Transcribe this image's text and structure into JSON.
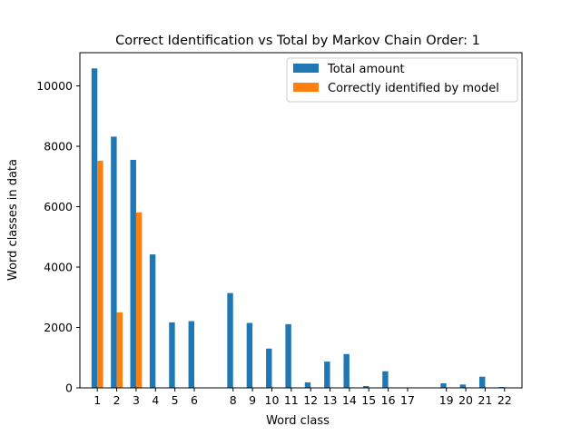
{
  "chart_data": {
    "type": "bar",
    "title": "Correct Identification vs Total by Markov Chain Order: 1",
    "xlabel": "Word class",
    "ylabel": "Word classes in data",
    "ylim": [
      0,
      11100
    ],
    "yticks": [
      0,
      2000,
      4000,
      6000,
      8000,
      10000
    ],
    "categories": [
      "1",
      "2",
      "3",
      "4",
      "5",
      "6",
      "8",
      "9",
      "10",
      "11",
      "12",
      "13",
      "14",
      "15",
      "16",
      "17",
      "19",
      "20",
      "21",
      "22"
    ],
    "x": [
      1,
      2,
      3,
      4,
      5,
      6,
      8,
      9,
      10,
      11,
      12,
      13,
      14,
      15,
      16,
      17,
      19,
      20,
      21,
      22
    ],
    "legend_position": "top-right",
    "grid": false,
    "series": [
      {
        "name": "Total amount",
        "color": "#1f77b4",
        "values": [
          10580,
          8320,
          7550,
          4420,
          2170,
          2210,
          3140,
          2150,
          1300,
          2110,
          180,
          870,
          1120,
          60,
          550,
          0,
          150,
          110,
          370,
          30
        ]
      },
      {
        "name": "Correctly identified by model",
        "color": "#ff7f0e",
        "values": [
          7520,
          2500,
          5810,
          0,
          0,
          0,
          0,
          0,
          0,
          0,
          0,
          0,
          0,
          0,
          0,
          0,
          0,
          0,
          0,
          0
        ]
      }
    ]
  }
}
